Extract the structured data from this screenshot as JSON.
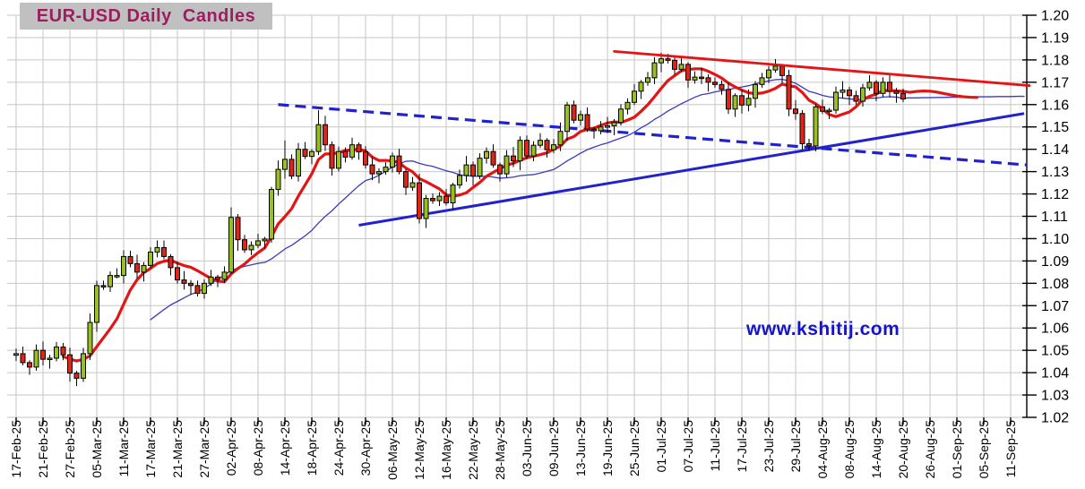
{
  "title": "EUR-USD Daily  Candles",
  "watermark": "www.kshitij.com",
  "chart_data": {
    "type": "candlestick",
    "symbol": "EUR-USD",
    "timeframe": "Daily",
    "first_candle_date": "17-Feb-25",
    "last_candle_date": "20-Aug-25",
    "ylim": [
      1.02,
      1.2
    ],
    "y_tick_step": 0.01,
    "y_tick_labels": [
      "1.20",
      "1.19",
      "1.18",
      "1.17",
      "1.16",
      "1.15",
      "1.14",
      "1.13",
      "1.12",
      "1.11",
      "1.10",
      "1.09",
      "1.08",
      "1.07",
      "1.06",
      "1.05",
      "1.04",
      "1.03",
      "1.02"
    ],
    "x_tick_labels": [
      "17-Feb-25",
      "21-Feb-25",
      "27-Feb-25",
      "05-Mar-25",
      "11-Mar-25",
      "17-Mar-25",
      "21-Mar-25",
      "27-Mar-25",
      "02-Apr-25",
      "08-Apr-25",
      "14-Apr-25",
      "18-Apr-25",
      "24-Apr-25",
      "30-Apr-25",
      "06-May-25",
      "12-May-25",
      "16-May-25",
      "22-May-25",
      "28-May-25",
      "03-Jun-25",
      "09-Jun-25",
      "13-Jun-25",
      "19-Jun-25",
      "25-Jun-25",
      "01-Jul-25",
      "07-Jul-25",
      "11-Jul-25",
      "17-Jul-25",
      "23-Jul-25",
      "29-Jul-25",
      "04-Aug-25",
      "08-Aug-25",
      "14-Aug-25",
      "20-Aug-25",
      "26-Aug-25",
      "01-Sep-25",
      "05-Sep-25",
      "11-Sep-25"
    ],
    "x_label_every_n_days": 4,
    "grid": true,
    "first_open": 1.0478,
    "closes": [
      1.0485,
      1.0445,
      1.0425,
      1.05,
      1.046,
      1.0465,
      1.0515,
      1.048,
      1.0398,
      1.0375,
      1.0485,
      1.0625,
      1.079,
      1.0785,
      1.0835,
      1.0835,
      1.092,
      1.0888,
      1.085,
      1.088,
      1.094,
      1.096,
      1.092,
      1.087,
      1.0815,
      1.08,
      1.079,
      1.0755,
      1.08,
      1.0828,
      1.0818,
      1.085,
      1.1095,
      1.0995,
      1.095,
      1.097,
      1.099,
      1.0998,
      1.122,
      1.131,
      1.1355,
      1.128,
      1.14,
      1.1368,
      1.139,
      1.151,
      1.142,
      1.1315,
      1.139,
      1.1365,
      1.142,
      1.1388,
      1.133,
      1.129,
      1.13,
      1.132,
      1.137,
      1.13,
      1.123,
      1.125,
      1.109,
      1.118,
      1.117,
      1.119,
      1.116,
      1.124,
      1.1283,
      1.133,
      1.128,
      1.136,
      1.139,
      1.133,
      1.129,
      1.137,
      1.1348,
      1.144,
      1.137,
      1.1418,
      1.144,
      1.1398,
      1.142,
      1.148,
      1.1598,
      1.153,
      1.1555,
      1.149,
      1.1483,
      1.15,
      1.1505,
      1.152,
      1.158,
      1.161,
      1.166,
      1.17,
      1.172,
      1.1787,
      1.1805,
      1.1798,
      1.1758,
      1.178,
      1.171,
      1.1723,
      1.172,
      1.17,
      1.169,
      1.1668,
      1.158,
      1.164,
      1.1598,
      1.1628,
      1.169,
      1.172,
      1.1755,
      1.1772,
      1.173,
      1.158,
      1.156,
      1.1425,
      1.1415,
      1.159,
      1.157,
      1.1575,
      1.1655,
      1.1665,
      1.164,
      1.1615,
      1.1675,
      1.17,
      1.165,
      1.17,
      1.166,
      1.165,
      1.1625
    ],
    "wick_hi_cycle": [
      0.0018,
      0.0032,
      0.001,
      0.0026,
      0.004,
      0.0015,
      0.0022
    ],
    "wick_lo_cycle": [
      0.0024,
      0.0012,
      0.0035,
      0.0016,
      0.0028,
      0.0042,
      0.0014
    ],
    "wick_overrides": {
      "0": {
        "h": 1.0508,
        "l": 1.0452
      },
      "8": {
        "l": 1.036
      },
      "12": {
        "h": 1.0812
      },
      "16": {
        "h": 1.0948
      },
      "21": {
        "h": 1.0992
      },
      "32": {
        "h": 1.114,
        "l": 1.0842
      },
      "33": {
        "l": 1.0945
      },
      "38": {
        "h": 1.1232
      },
      "40": {
        "h": 1.144
      },
      "42": {
        "h": 1.1428
      },
      "45": {
        "h": 1.1575
      },
      "47": {
        "l": 1.1282
      },
      "56": {
        "h": 1.1385
      },
      "60": {
        "l": 1.1068
      },
      "75": {
        "h": 1.1458
      },
      "82": {
        "h": 1.1612
      },
      "83": {
        "h": 1.1618
      },
      "95": {
        "h": 1.1812
      },
      "96": {
        "h": 1.1832
      },
      "106": {
        "l": 1.1558
      },
      "108": {
        "l": 1.156
      },
      "115": {
        "l": 1.1548
      },
      "117": {
        "l": 1.1398
      },
      "118": {
        "l": 1.1392
      },
      "119": {
        "h": 1.1602
      },
      "127": {
        "h": 1.1732
      },
      "129": {
        "h": 1.1722
      }
    },
    "moving_averages": [
      {
        "name": "fast-ma",
        "period": 8,
        "color": "#e41414",
        "width": 3.2,
        "extension": [
          1.1655,
          1.1659,
          1.1661,
          1.166,
          1.1656,
          1.165,
          1.1644,
          1.1639,
          1.1635,
          1.1633,
          1.1632
        ]
      },
      {
        "name": "slow-ma",
        "period": 21,
        "color": "#3a3ac0",
        "width": 1.3,
        "extension": [
          1.163,
          1.163,
          1.1631,
          1.1631,
          1.1632,
          1.1632,
          1.1633,
          1.1633,
          1.1634,
          1.1634,
          1.1635,
          1.1635,
          1.1635,
          1.1636,
          1.1636,
          1.1636,
          1.1637,
          1.1637
        ]
      }
    ],
    "trendlines": [
      {
        "name": "dashed-resistance-trendline",
        "color": "#2222cc",
        "dash": "12 7",
        "width": 3.2,
        "d1": 39,
        "v1": 1.16,
        "d2": 150.3,
        "v2": 1.133
      },
      {
        "name": "support-trendline",
        "color": "#2222cc",
        "dash": null,
        "width": 3.0,
        "d1": 51,
        "v1": 1.106,
        "d2": 150.0,
        "v2": 1.156
      },
      {
        "name": "upper-resistance-trendline",
        "color": "#e41414",
        "dash": null,
        "width": 2.8,
        "d1": 89,
        "v1": 1.1838,
        "d2": 150.8,
        "v2": 1.1685
      }
    ],
    "colors": {
      "up_candle": "#97c020",
      "down_candle": "#e02418",
      "candle_outline": "#000000",
      "grid": "#c6c6c6",
      "axis": "#000000",
      "background": "#ffffff"
    }
  }
}
